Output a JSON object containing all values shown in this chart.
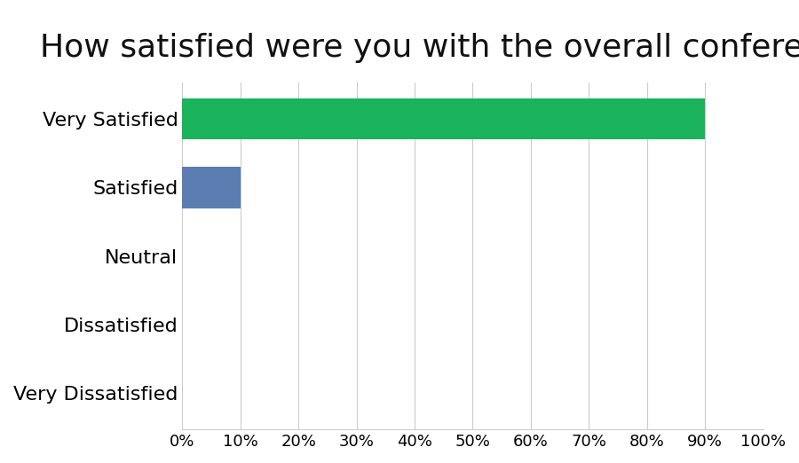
{
  "title": "How satisfied were you with the overall conference?",
  "categories": [
    "Very Satisfied",
    "Satisfied",
    "Neutral",
    "Dissatisfied",
    "Very Dissatisfied"
  ],
  "values": [
    90,
    10,
    0,
    0,
    0
  ],
  "xlim": [
    0,
    100
  ],
  "xticks": [
    0,
    10,
    20,
    30,
    40,
    50,
    60,
    70,
    80,
    90,
    100
  ],
  "xtick_labels": [
    "0%",
    "10%",
    "20%",
    "30%",
    "40%",
    "50%",
    "60%",
    "70%",
    "80%",
    "90%",
    "100%"
  ],
  "title_fontsize": 26,
  "tick_fontsize": 13,
  "label_fontsize": 16,
  "background_color": "#ffffff",
  "grid_color": "#cccccc",
  "green_color": "#1ab25a",
  "blue_color": "#5b7db1"
}
